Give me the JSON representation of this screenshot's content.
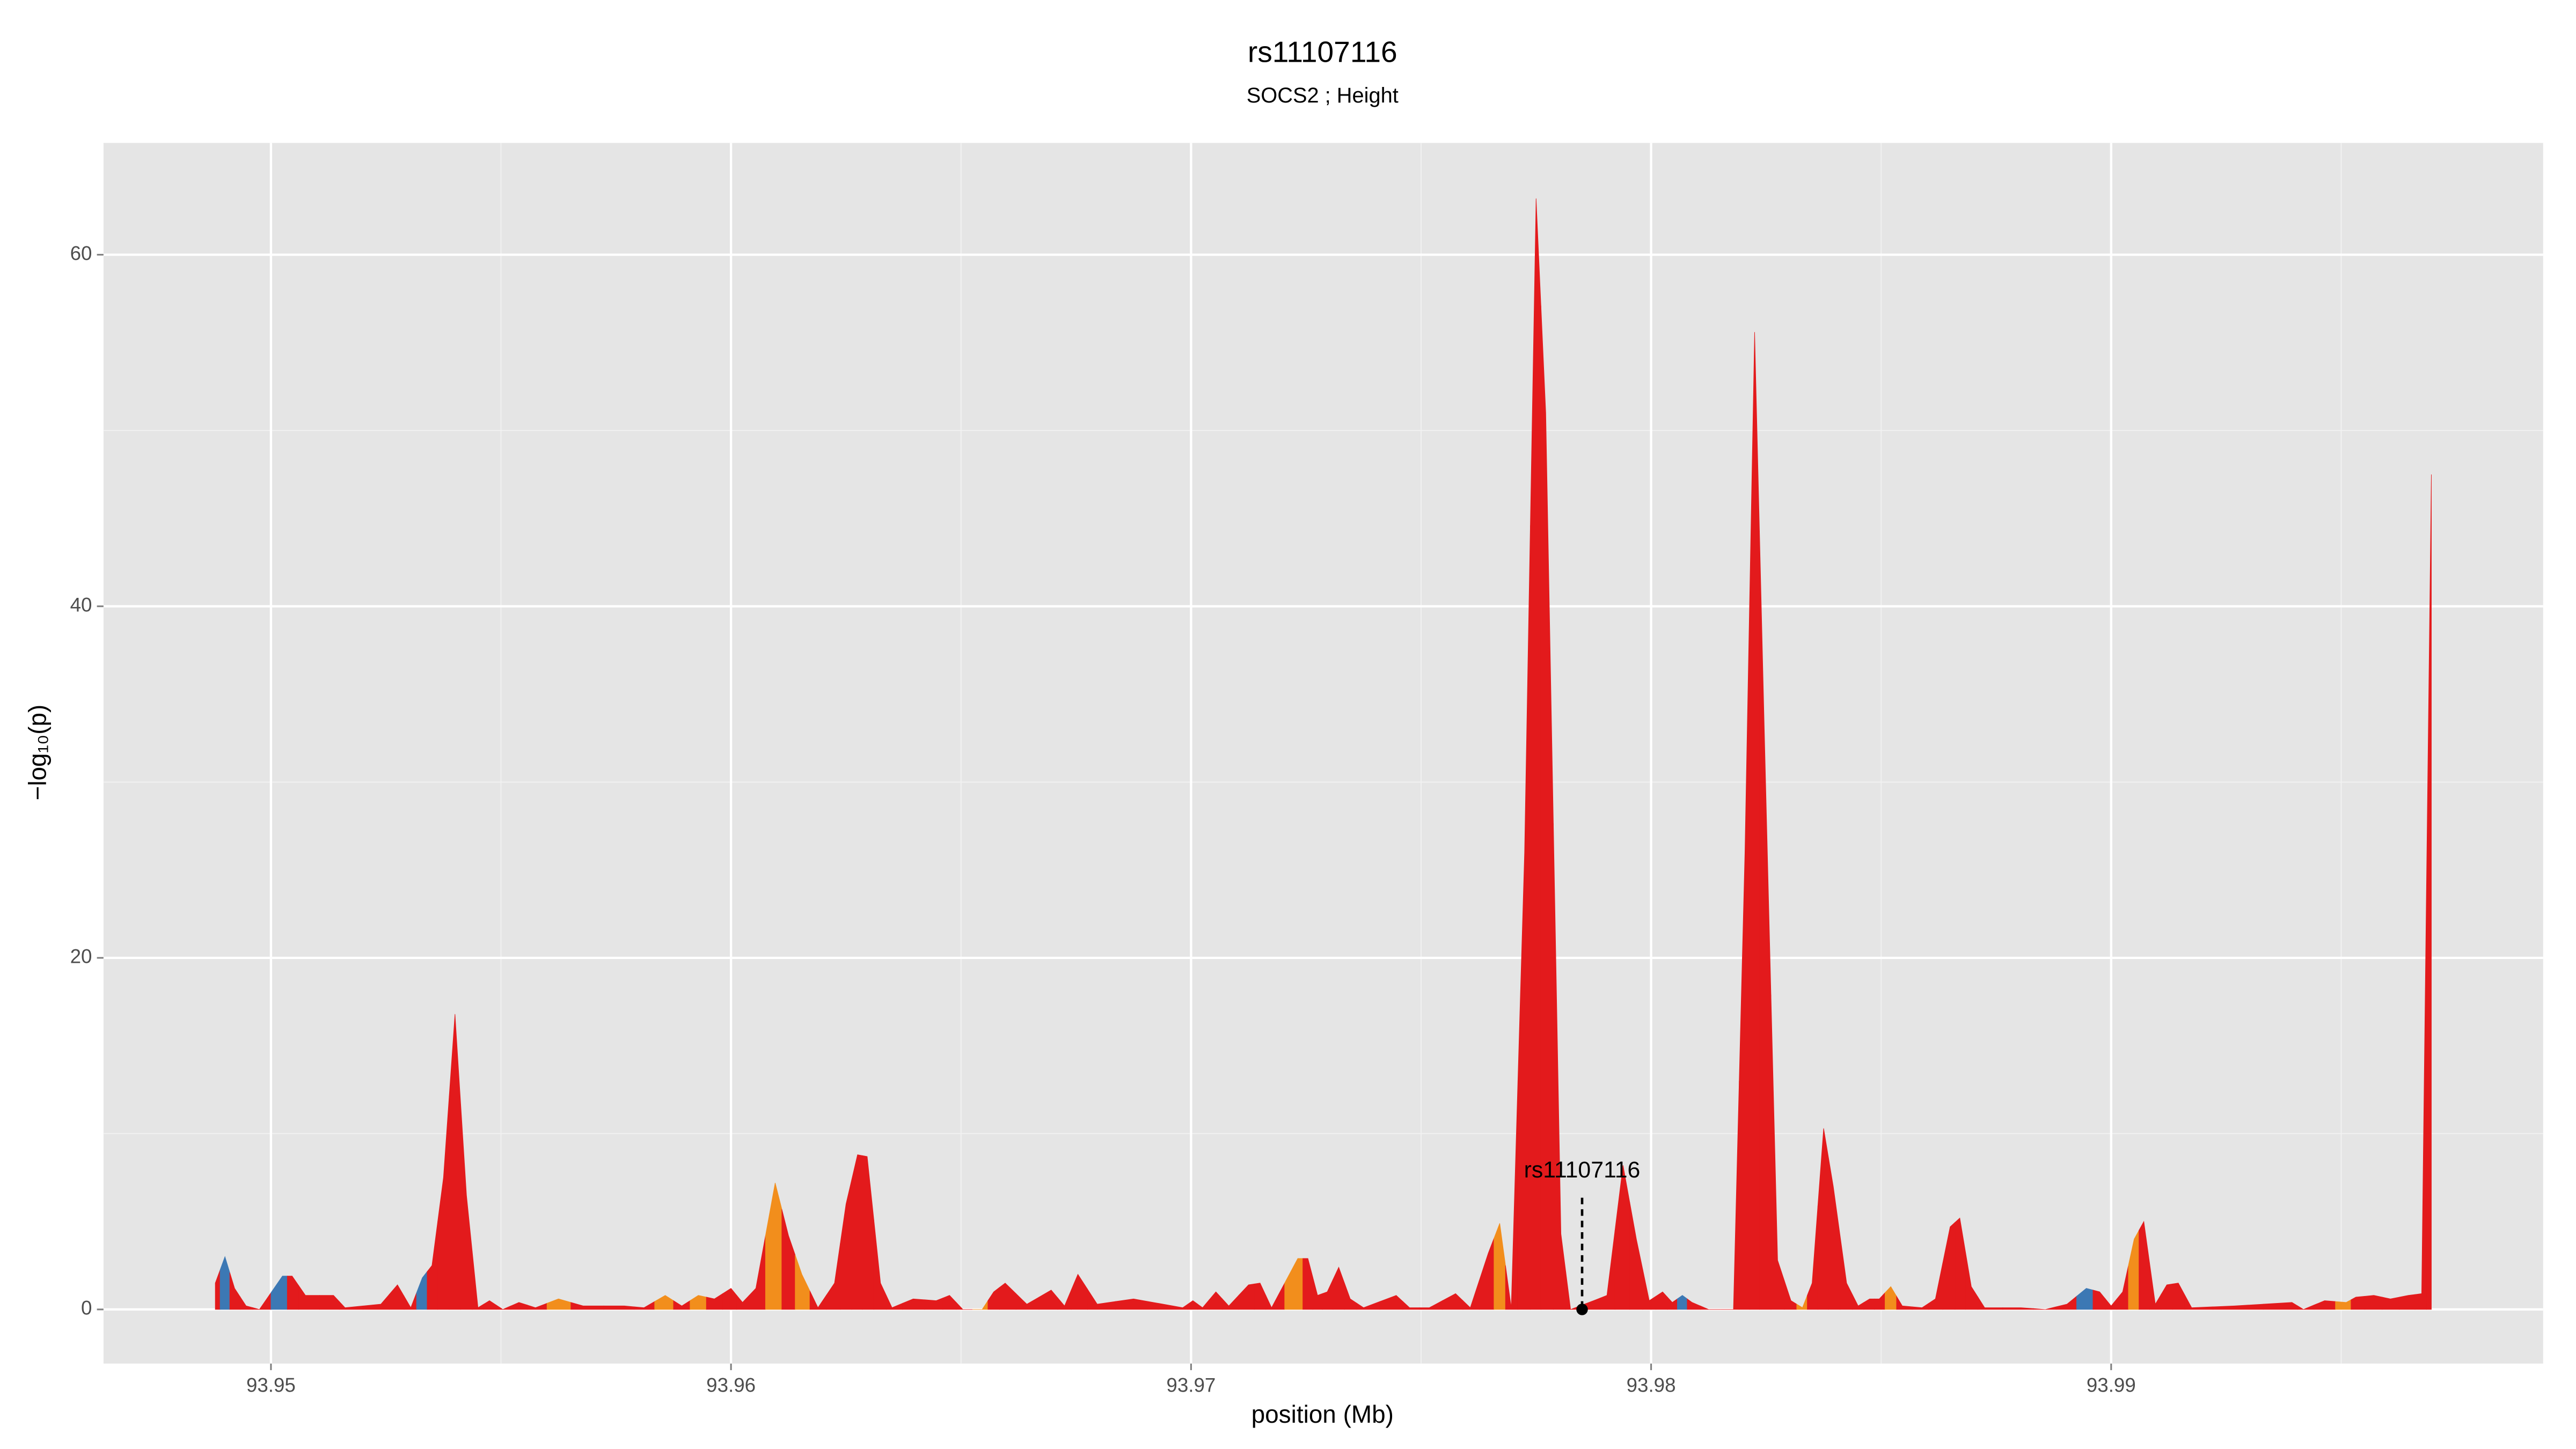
{
  "chart_data": {
    "type": "area",
    "title": "rs11107116",
    "subtitle": "SOCS2 ; Height",
    "x_label": "position (Mb)",
    "y_label": "−log₁₀(p)",
    "xlim": [
      93.94636,
      93.99939
    ],
    "ylim": [
      -3.08,
      66.36
    ],
    "xticks": [
      93.95,
      93.96,
      93.97,
      93.98,
      93.99
    ],
    "yticks": [
      0,
      20,
      40,
      60
    ],
    "grid": true,
    "x": [
      93.94879,
      93.949,
      93.94921,
      93.94946,
      93.94975,
      93.95025,
      93.95046,
      93.95075,
      93.95136,
      93.95161,
      93.95239,
      93.95275,
      93.95304,
      93.95329,
      93.9535,
      93.95375,
      93.954,
      93.95425,
      93.9545,
      93.95475,
      93.95504,
      93.95539,
      93.95575,
      93.95625,
      93.95679,
      93.95768,
      93.95811,
      93.95857,
      93.95893,
      93.95929,
      93.95964,
      93.96,
      93.96025,
      93.96054,
      93.96096,
      93.96125,
      93.96154,
      93.96189,
      93.96225,
      93.9625,
      93.96275,
      93.96296,
      93.96325,
      93.9635,
      93.96396,
      93.96446,
      93.96475,
      93.96504,
      93.96546,
      93.96571,
      93.96596,
      93.96643,
      93.96696,
      93.96725,
      93.96754,
      93.96796,
      93.96875,
      93.96982,
      93.97004,
      93.97025,
      93.97054,
      93.97082,
      93.97125,
      93.9715,
      93.97175,
      93.97232,
      93.97254,
      93.97275,
      93.97296,
      93.97321,
      93.97346,
      93.97375,
      93.97446,
      93.97475,
      93.97518,
      93.97575,
      93.97607,
      93.97646,
      93.97671,
      93.97696,
      93.97725,
      93.9775,
      93.97771,
      93.97804,
      93.97825,
      93.97875,
      93.97904,
      93.97939,
      93.97968,
      93.97996,
      93.98025,
      93.98046,
      93.98068,
      93.98089,
      93.98125,
      93.98179,
      93.98204,
      93.98225,
      93.98246,
      93.98275,
      93.98304,
      93.98329,
      93.9835,
      93.98375,
      93.98396,
      93.98425,
      93.9845,
      93.98475,
      93.98496,
      93.98521,
      93.98546,
      93.98589,
      93.98618,
      93.9865,
      93.98671,
      93.98696,
      93.98725,
      93.98804,
      93.98857,
      93.98904,
      93.98946,
      93.98975,
      93.99,
      93.99025,
      93.9905,
      93.99071,
      93.99096,
      93.99121,
      93.99146,
      93.99175,
      93.99268,
      93.99393,
      93.99418,
      93.99464,
      93.99511,
      93.99532,
      93.99571,
      93.99607,
      93.99646,
      93.99675,
      93.99696
    ],
    "values": [
      1.5,
      3.0,
      1.2,
      0.2,
      0.0,
      1.9,
      1.9,
      0.8,
      0.8,
      0.1,
      0.3,
      1.4,
      0.1,
      1.8,
      2.5,
      7.5,
      16.8,
      6.5,
      0.1,
      0.5,
      0.0,
      0.4,
      0.1,
      0.6,
      0.2,
      0.2,
      0.1,
      0.8,
      0.2,
      0.8,
      0.6,
      1.2,
      0.4,
      1.2,
      7.2,
      4.2,
      2.0,
      0.1,
      1.5,
      6.0,
      8.8,
      8.7,
      1.5,
      0.1,
      0.6,
      0.5,
      0.8,
      0.0,
      0.0,
      1.0,
      1.5,
      0.3,
      1.1,
      0.2,
      2.0,
      0.3,
      0.6,
      0.1,
      0.5,
      0.1,
      1.0,
      0.2,
      1.4,
      1.5,
      0.1,
      2.9,
      2.9,
      0.8,
      1.0,
      2.4,
      0.6,
      0.1,
      0.8,
      0.1,
      0.1,
      0.9,
      0.1,
      3.2,
      4.9,
      0.1,
      26.0,
      63.2,
      51.0,
      4.3,
      0.0,
      0.5,
      0.8,
      8.2,
      4.0,
      0.5,
      1.0,
      0.4,
      0.8,
      0.4,
      0.0,
      0.0,
      26.0,
      55.6,
      33.0,
      2.8,
      0.5,
      0.1,
      1.5,
      10.3,
      7.0,
      1.5,
      0.2,
      0.6,
      0.6,
      1.3,
      0.2,
      0.1,
      0.6,
      4.7,
      5.2,
      1.3,
      0.1,
      0.1,
      0.0,
      0.3,
      1.2,
      1.0,
      0.2,
      1.0,
      4.0,
      5.0,
      0.3,
      1.4,
      1.5,
      0.1,
      0.2,
      0.4,
      0.0,
      0.5,
      0.4,
      0.7,
      0.8,
      0.6,
      0.8,
      0.9,
      47.5
    ],
    "colors": [
      "#e31a1c",
      "#3c78b4",
      "#e31a1c",
      "#e31a1c",
      "#e31a1c",
      "#3c78b4",
      "#e31a1c",
      "#e31a1c",
      "#e31a1c",
      "#e31a1c",
      "#e31a1c",
      "#e31a1c",
      "#e31a1c",
      "#3c78b4",
      "#e31a1c",
      "#e31a1c",
      "#e31a1c",
      "#e31a1c",
      "#e31a1c",
      "#e31a1c",
      "#e31a1c",
      "#e31a1c",
      "#e31a1c",
      "#f28e1c",
      "#e31a1c",
      "#e31a1c",
      "#e31a1c",
      "#f28e1c",
      "#e31a1c",
      "#f28e1c",
      "#e31a1c",
      "#e31a1c",
      "#e31a1c",
      "#e31a1c",
      "#f28e1c",
      "#e31a1c",
      "#f28e1c",
      "#e31a1c",
      "#e31a1c",
      "#e31a1c",
      "#e31a1c",
      "#e31a1c",
      "#e31a1c",
      "#e31a1c",
      "#e31a1c",
      "#e31a1c",
      "#e31a1c",
      "#e31a1c",
      "#f28e1c",
      "#e31a1c",
      "#e31a1c",
      "#e31a1c",
      "#e31a1c",
      "#e31a1c",
      "#e31a1c",
      "#e31a1c",
      "#e31a1c",
      "#e31a1c",
      "#e31a1c",
      "#e31a1c",
      "#e31a1c",
      "#e31a1c",
      "#e31a1c",
      "#e31a1c",
      "#e31a1c",
      "#f28e1c",
      "#e31a1c",
      "#e31a1c",
      "#e31a1c",
      "#e31a1c",
      "#e31a1c",
      "#e31a1c",
      "#e31a1c",
      "#e31a1c",
      "#e31a1c",
      "#e31a1c",
      "#e31a1c",
      "#e31a1c",
      "#f28e1c",
      "#e31a1c",
      "#e31a1c",
      "#e31a1c",
      "#e31a1c",
      "#e31a1c",
      "#e31a1c",
      "#e31a1c",
      "#e31a1c",
      "#e31a1c",
      "#e31a1c",
      "#e31a1c",
      "#e31a1c",
      "#e31a1c",
      "#3c78b4",
      "#e31a1c",
      "#e31a1c",
      "#e31a1c",
      "#e31a1c",
      "#e31a1c",
      "#e31a1c",
      "#e31a1c",
      "#e31a1c",
      "#f28e1c",
      "#e31a1c",
      "#e31a1c",
      "#e31a1c",
      "#e31a1c",
      "#e31a1c",
      "#e31a1c",
      "#e31a1c",
      "#f28e1c",
      "#e31a1c",
      "#e31a1c",
      "#e31a1c",
      "#e31a1c",
      "#e31a1c",
      "#e31a1c",
      "#e31a1c",
      "#e31a1c",
      "#e31a1c",
      "#e31a1c",
      "#3c78b4",
      "#e31a1c",
      "#e31a1c",
      "#e31a1c",
      "#f28e1c",
      "#e31a1c",
      "#e31a1c",
      "#e31a1c",
      "#e31a1c",
      "#e31a1c",
      "#e31a1c",
      "#e31a1c",
      "#e31a1c",
      "#e31a1c",
      "#f28e1c",
      "#e31a1c",
      "#e31a1c",
      "#e31a1c",
      "#e31a1c",
      "#e31a1c",
      "#e31a1c"
    ],
    "annotation": {
      "text": "rs11107116",
      "x": 93.9785,
      "y": 0
    }
  }
}
